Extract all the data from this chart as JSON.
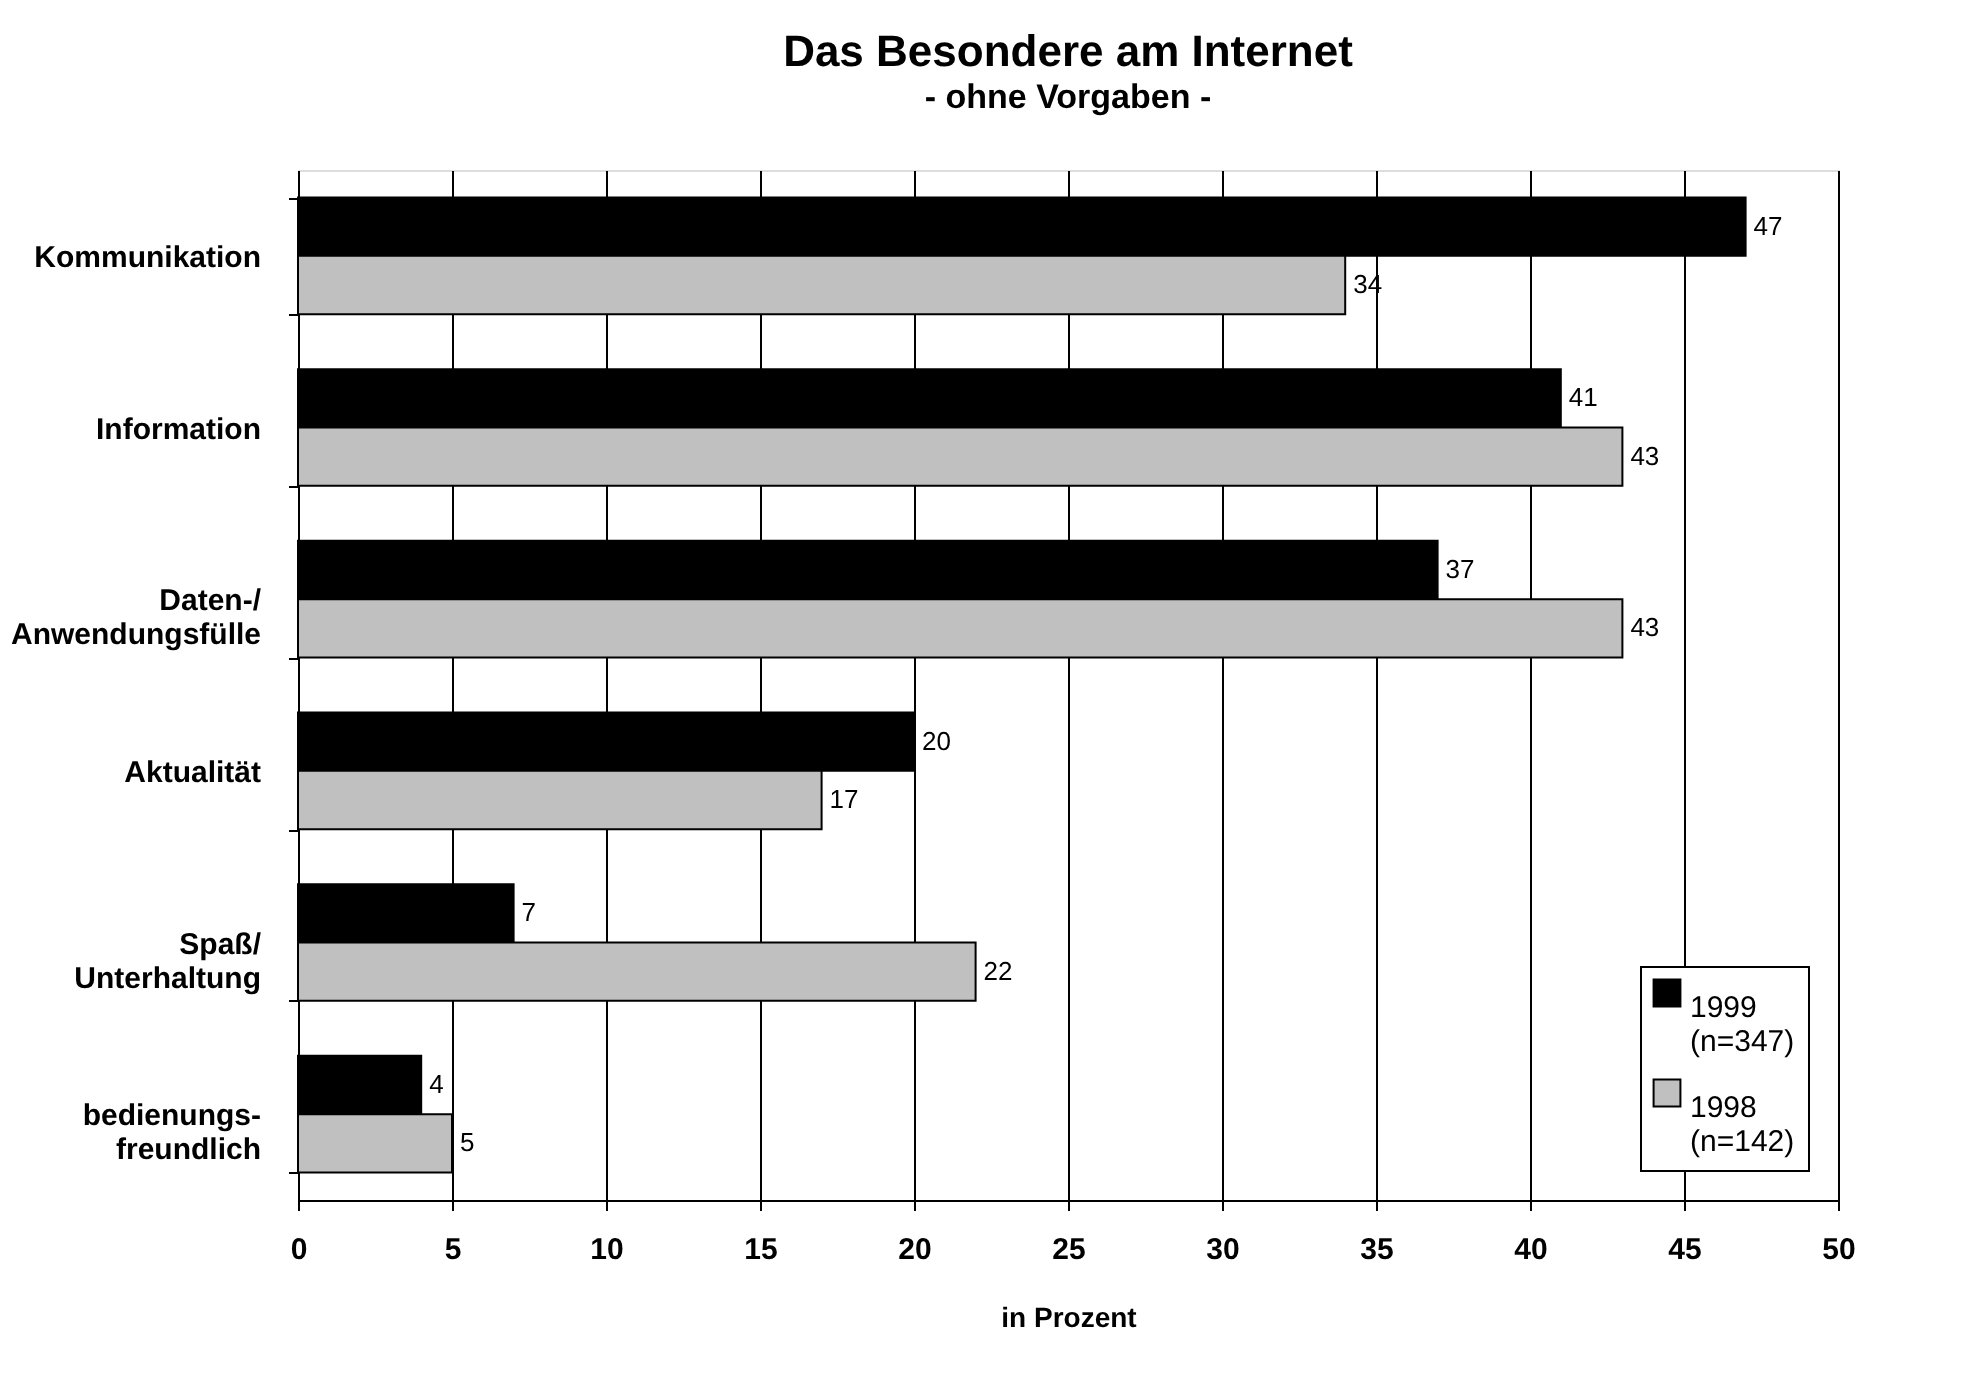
{
  "chart_data": {
    "type": "bar",
    "orientation": "horizontal",
    "title": "Das Besondere am Internet",
    "subtitle": "- ohne Vorgaben -",
    "xlabel": "in Prozent",
    "categories": [
      "Kommunikation",
      "Information",
      "Daten-/\nAnwendungsfülle",
      "Aktualität",
      "Spaß/\nUnterhaltung",
      "bedienungs-\nfreundlich"
    ],
    "series": [
      {
        "name": "1999\n(n=347)",
        "color": "#000000",
        "values": [
          47,
          41,
          37,
          20,
          7,
          4
        ]
      },
      {
        "name": "1998\n(n=142)",
        "color": "#c0c0c0",
        "values": [
          34,
          43,
          43,
          17,
          22,
          5
        ]
      }
    ],
    "xlim": [
      0,
      50
    ],
    "xticks": [
      0,
      5,
      10,
      15,
      20,
      25,
      30,
      35,
      40,
      45,
      50
    ],
    "grid": "x",
    "legend": "bottom right",
    "data_labels": true
  }
}
